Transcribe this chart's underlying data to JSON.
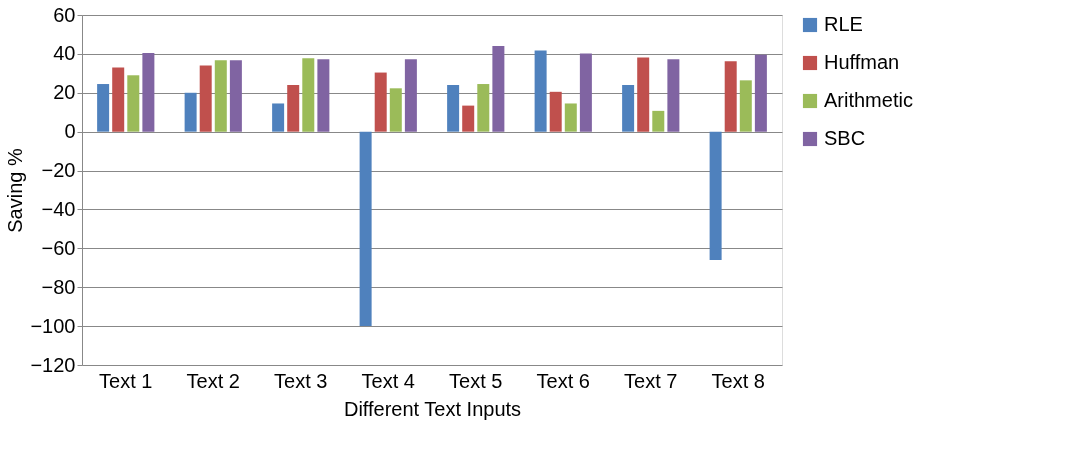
{
  "chart_data": {
    "type": "bar",
    "xlabel": "Different Text Inputs",
    "ylabel": "Saving %",
    "categories": [
      "Text 1",
      "Text 2",
      "Text 3",
      "Text 4",
      "Text 5",
      "Text 6",
      "Text 7",
      "Text 8"
    ],
    "series": [
      {
        "name": "RLE",
        "color": "#4f81bd",
        "values": [
          24.5,
          20,
          14.5,
          -100,
          24,
          41.8,
          24,
          -66
        ]
      },
      {
        "name": "Huffman",
        "color": "#c0504d",
        "values": [
          33,
          34,
          24,
          30.4,
          13.4,
          20.5,
          38.2,
          36.2
        ]
      },
      {
        "name": "Arithmetic",
        "color": "#9bbb59",
        "values": [
          29,
          36.7,
          37.7,
          22.3,
          24.5,
          14.5,
          10.7,
          26.4
        ]
      },
      {
        "name": "SBC",
        "color": "#8064a2",
        "values": [
          40.5,
          36.7,
          37.3,
          37.3,
          44,
          40.2,
          37.3,
          39.5
        ]
      }
    ],
    "ylim": [
      -120,
      60
    ],
    "yticks": [
      -120,
      -100,
      -80,
      -60,
      -40,
      -20,
      0,
      20,
      40,
      60
    ],
    "grid": "y",
    "legend": "right"
  }
}
